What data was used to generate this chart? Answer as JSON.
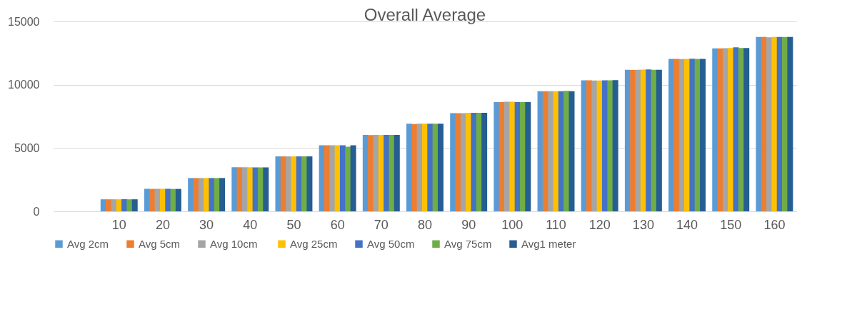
{
  "chart_data": {
    "type": "bar",
    "title": "Overall Average",
    "categories": [
      null,
      "10",
      "20",
      "30",
      "40",
      "50",
      "60",
      "70",
      "80",
      "90",
      "100",
      "110",
      "120",
      "130",
      "140",
      "150",
      "160"
    ],
    "series": [
      {
        "name": "Avg 2cm",
        "color": "#5b9bd5",
        "values": [
          null,
          950,
          1780,
          2630,
          3480,
          4340,
          5210,
          6040,
          6920,
          7760,
          8630,
          9490,
          10350,
          11180,
          12040,
          12870,
          13770
        ]
      },
      {
        "name": "Avg 5cm",
        "color": "#ed7d31",
        "values": [
          null,
          950,
          1770,
          2630,
          3480,
          4340,
          5210,
          6020,
          6900,
          7760,
          8630,
          9490,
          10350,
          11160,
          12040,
          12870,
          13770
        ]
      },
      {
        "name": "Avg  10cm",
        "color": "#a5a5a5",
        "values": [
          null,
          950,
          1780,
          2630,
          3480,
          4340,
          5210,
          6040,
          6920,
          7760,
          8650,
          9490,
          10340,
          11180,
          12020,
          12890,
          13750
        ]
      },
      {
        "name": "Avg 25cm",
        "color": "#ffc000",
        "values": [
          null,
          950,
          1780,
          2630,
          3480,
          4340,
          5210,
          6040,
          6920,
          7780,
          8650,
          9490,
          10340,
          11200,
          12040,
          12900,
          13770
        ]
      },
      {
        "name": "Avg 50cm",
        "color": "#4472c4",
        "values": [
          null,
          960,
          1780,
          2630,
          3470,
          4340,
          5210,
          6040,
          6920,
          7780,
          8630,
          9490,
          10350,
          11210,
          12060,
          12950,
          13770
        ]
      },
      {
        "name": "Avg 75cm",
        "color": "#70ad47",
        "values": [
          null,
          950,
          1770,
          2630,
          3470,
          4340,
          5110,
          6040,
          6920,
          7780,
          8630,
          9510,
          10350,
          11180,
          12040,
          12900,
          13770
        ]
      },
      {
        "name": "Avg1 meter",
        "color": "#255e91",
        "values": [
          null,
          950,
          1770,
          2630,
          3470,
          4340,
          5210,
          6040,
          6920,
          7780,
          8630,
          9490,
          10360,
          11180,
          12040,
          12900,
          13770
        ]
      }
    ],
    "ylim": [
      0,
      15000
    ],
    "yticks": [
      0,
      5000,
      10000,
      15000
    ],
    "grid": "y",
    "legend": "bottom"
  }
}
